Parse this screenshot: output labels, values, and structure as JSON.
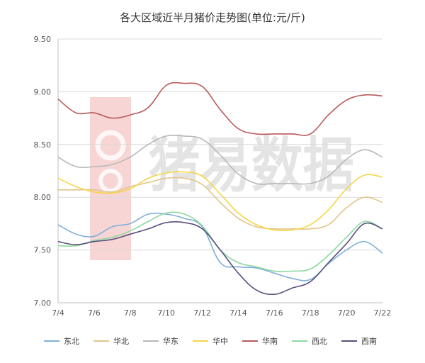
{
  "chart_data": {
    "type": "line",
    "title": "各大区域近半月猪价走势图(单位:元/斤)",
    "x": [
      "7/4",
      "7/5",
      "7/6",
      "7/7",
      "7/8",
      "7/9",
      "7/10",
      "7/11",
      "7/12",
      "7/13",
      "7/14",
      "7/15",
      "7/16",
      "7/17",
      "7/18",
      "7/19",
      "7/20",
      "7/21",
      "7/22"
    ],
    "x_tick_labels": [
      "7/4",
      "7/6",
      "7/8",
      "7/10",
      "7/12",
      "7/14",
      "7/16",
      "7/18",
      "7/20",
      "7/22"
    ],
    "ylim": [
      7.0,
      9.5
    ],
    "y_ticks": [
      "7.00",
      "7.50",
      "8.00",
      "8.50",
      "9.00",
      "9.50"
    ],
    "grid": true,
    "legend_position": "bottom",
    "watermark": "猪易数据",
    "series": [
      {
        "name": "东北",
        "color": "#7fb0d8",
        "values": [
          7.74,
          7.65,
          7.63,
          7.72,
          7.75,
          7.84,
          7.84,
          7.8,
          7.72,
          7.38,
          7.34,
          7.33,
          7.28,
          7.23,
          7.22,
          7.37,
          7.5,
          7.58,
          7.47
        ]
      },
      {
        "name": "华北",
        "color": "#e2c48a",
        "values": [
          8.07,
          8.07,
          8.07,
          8.05,
          8.1,
          8.14,
          8.18,
          8.18,
          8.12,
          7.95,
          7.8,
          7.72,
          7.7,
          7.7,
          7.7,
          7.74,
          7.9,
          8.0,
          7.95
        ]
      },
      {
        "name": "华东",
        "color": "#b8b8b8",
        "values": [
          8.38,
          8.29,
          8.29,
          8.31,
          8.38,
          8.5,
          8.58,
          8.58,
          8.55,
          8.4,
          8.22,
          8.13,
          8.13,
          8.13,
          8.13,
          8.2,
          8.36,
          8.45,
          8.38
        ]
      },
      {
        "name": "华中",
        "color": "#f5d547",
        "values": [
          8.18,
          8.1,
          8.05,
          8.04,
          8.08,
          8.18,
          8.23,
          8.24,
          8.2,
          8.03,
          7.85,
          7.74,
          7.69,
          7.69,
          7.74,
          7.88,
          8.08,
          8.21,
          8.19
        ]
      },
      {
        "name": "华南",
        "color": "#b85a5a",
        "values": [
          8.93,
          8.8,
          8.8,
          8.75,
          8.78,
          8.85,
          9.06,
          9.08,
          9.05,
          8.83,
          8.65,
          8.6,
          8.6,
          8.6,
          8.6,
          8.78,
          8.92,
          8.97,
          8.96
        ]
      },
      {
        "name": "西北",
        "color": "#8fd8a0",
        "values": [
          7.54,
          7.54,
          7.59,
          7.62,
          7.68,
          7.77,
          7.85,
          7.84,
          7.73,
          7.5,
          7.38,
          7.34,
          7.3,
          7.3,
          7.32,
          7.45,
          7.62,
          7.77,
          7.7
        ]
      },
      {
        "name": "西南",
        "color": "#58507e",
        "values": [
          7.58,
          7.55,
          7.58,
          7.6,
          7.65,
          7.7,
          7.76,
          7.76,
          7.7,
          7.5,
          7.28,
          7.12,
          7.08,
          7.14,
          7.2,
          7.38,
          7.56,
          7.75,
          7.7
        ]
      }
    ]
  }
}
